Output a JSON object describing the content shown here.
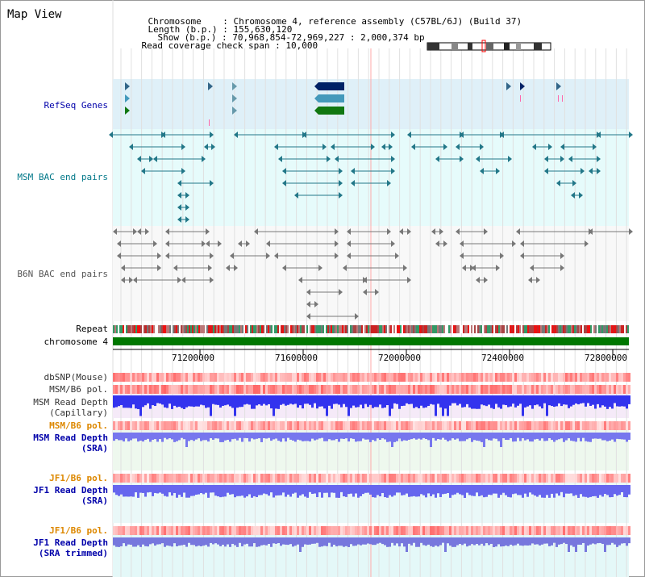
{
  "header": {
    "title": "Map View",
    "chromosome_label": "Chromosome",
    "chromosome_value": "Chromosome 4, reference assembly (C57BL/6J) (Build 37)",
    "length_label": "Length (b.p.)",
    "length_value": "155,630,120",
    "show_label": "Show (b.p.)",
    "show_value": "70,968,854-72,969,227 : 2,000,374 bp",
    "coverage_label": "Read coverage check span",
    "coverage_value": "10,000"
  },
  "tracks": {
    "refseq": "RefSeq Genes",
    "msm_bac": "MSM BAC end pairs",
    "b6n_bac": "B6N BAC end pairs",
    "repeat": "Repeat",
    "chromosome": "chromosome 4",
    "dbsnp": "dbSNP(Mouse)",
    "msm_b6_pol": "MSM/B6 pol.",
    "msm_depth_cap_1": "MSM Read Depth",
    "msm_depth_cap_2": "(Capillary)",
    "msm_b6_pol_2": "MSM/B6 pol.",
    "msm_depth_sra_1": "MSM Read Depth",
    "msm_depth_sra_2": "(SRA)",
    "jf1_b6_pol": "JF1/B6 pol.",
    "jf1_depth_sra_1": "JF1 Read Depth",
    "jf1_depth_sra_2": "(SRA)",
    "jf1_b6_pol_2": "JF1/B6 pol.",
    "jf1_depth_trim_1": "JF1 Read Depth",
    "jf1_depth_trim_2": "(SRA trimmed)"
  },
  "axis": {
    "ticks": [
      "71200000",
      "71600000",
      "72000000",
      "72400000",
      "72800000"
    ]
  },
  "colors": {
    "refseq_bg": "#dff0f8",
    "msm_bg": "#e6fbfb",
    "blue_label": "#0000aa",
    "teal_label": "#007788",
    "orange_label": "#dd8800",
    "gray_label": "#555555",
    "chromosome_bar": "#007700",
    "depth_blue": "#3333ee"
  }
}
